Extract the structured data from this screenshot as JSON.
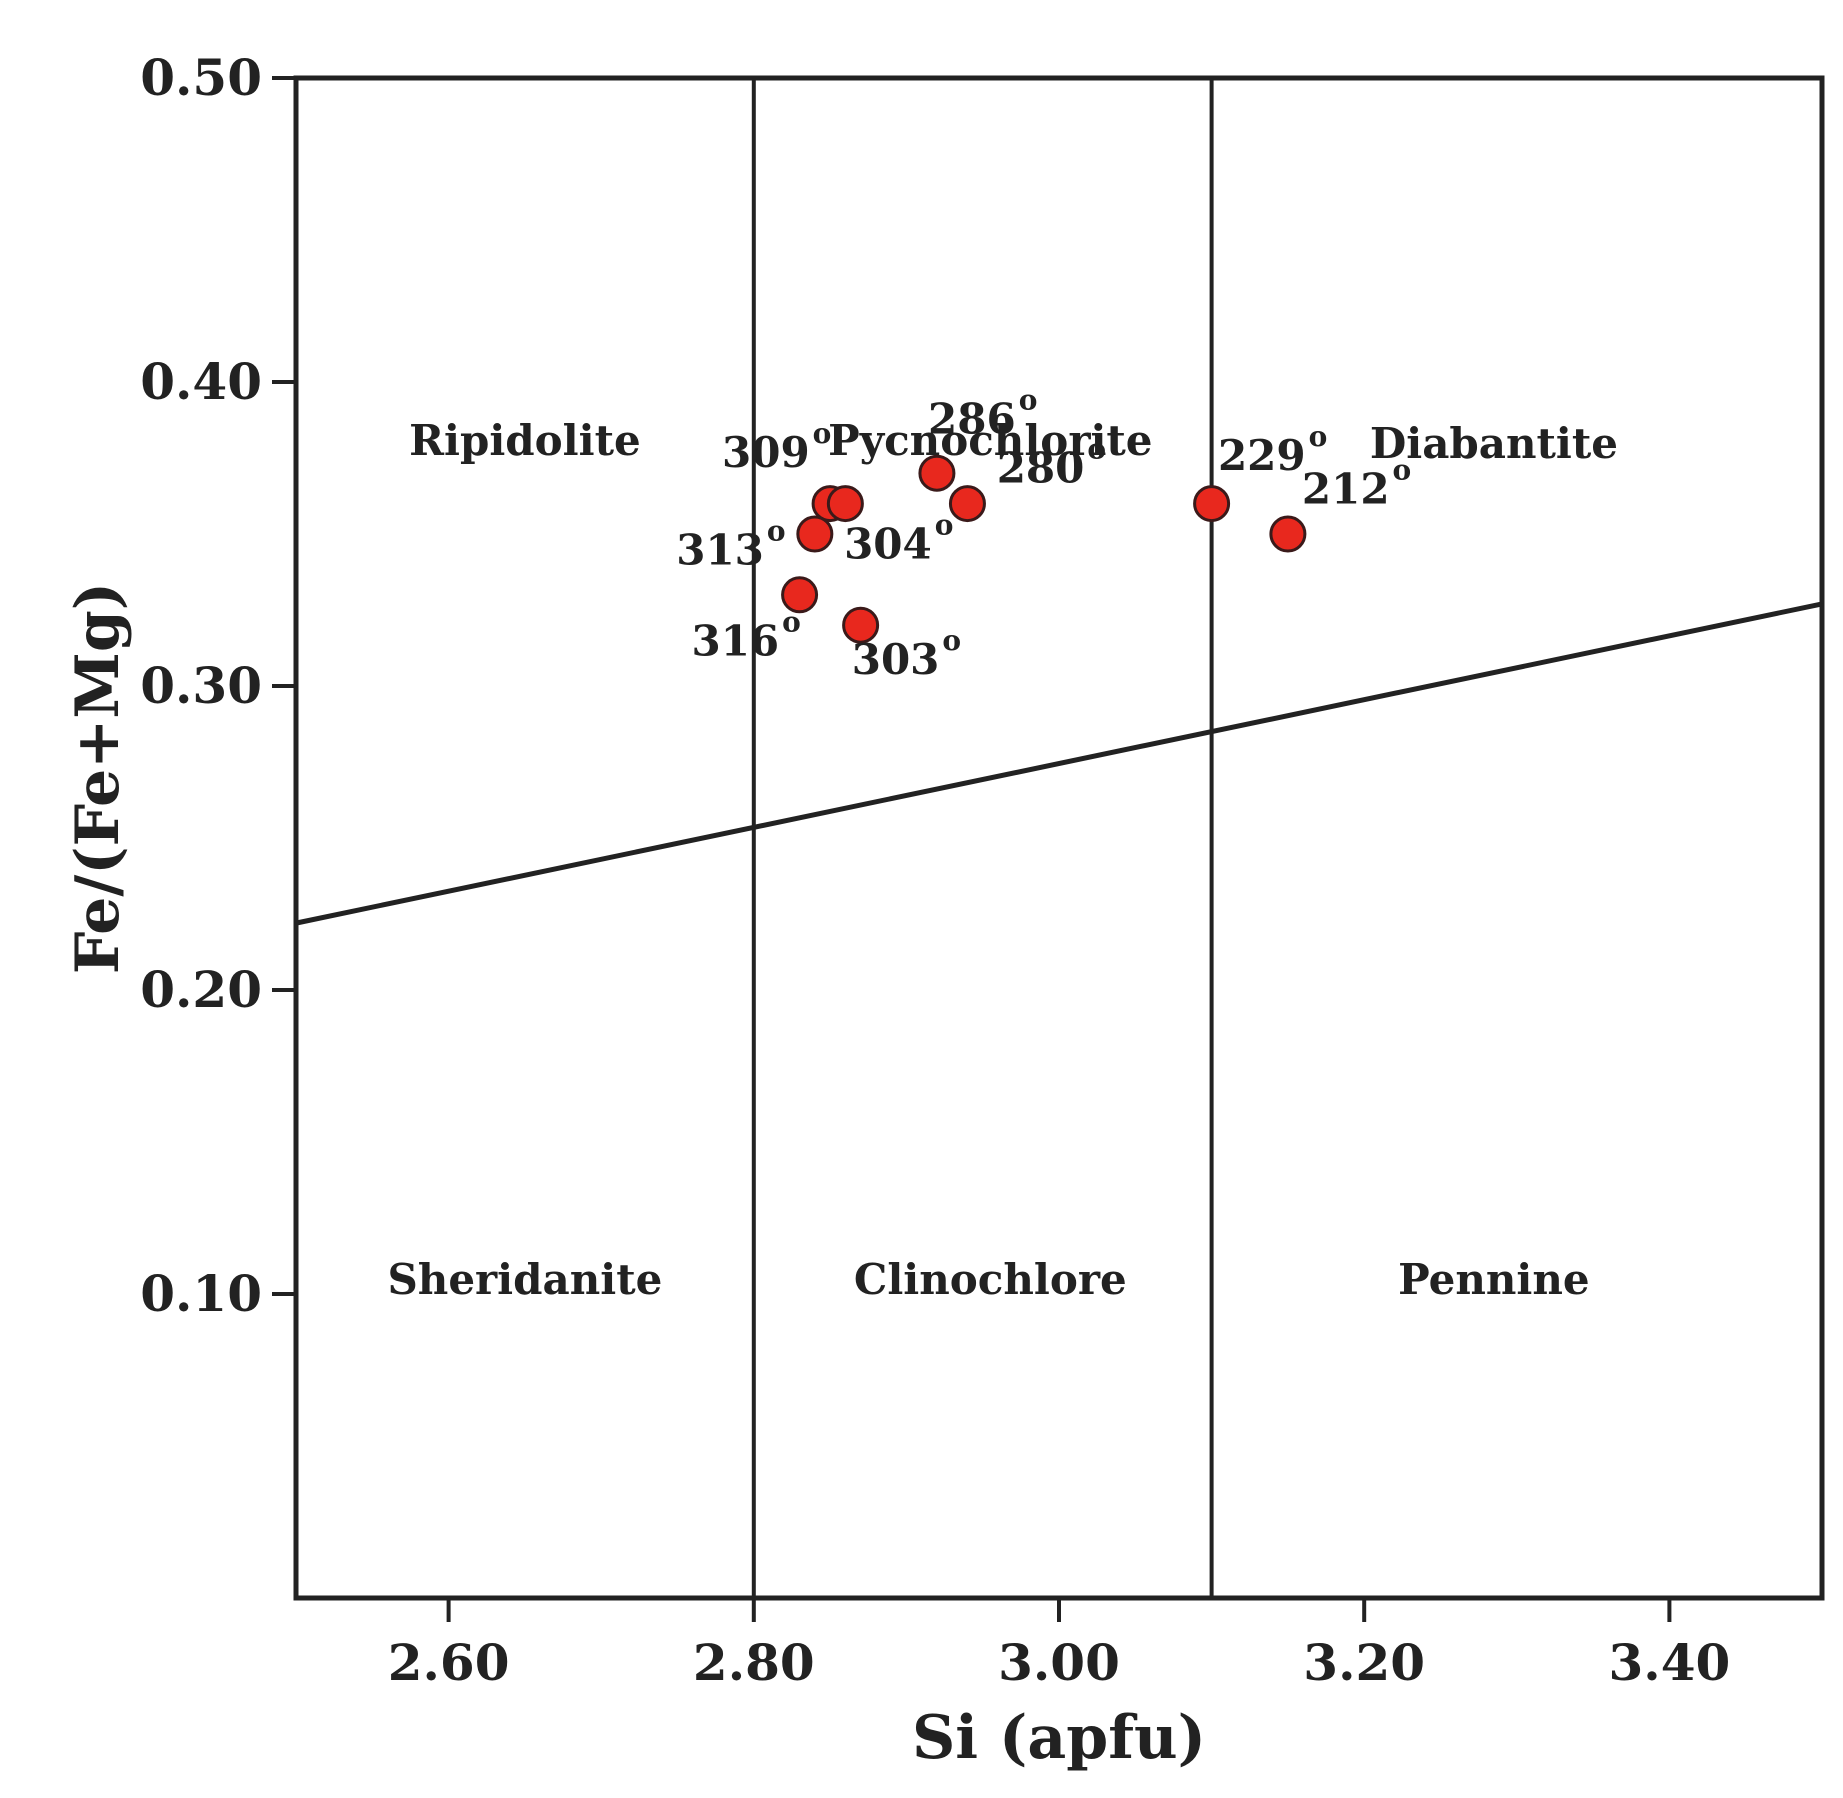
{
  "chart_data": {
    "type": "scatter",
    "xlabel": "Si (apfu)",
    "ylabel": "Fe/(Fe+Mg)",
    "xlim": [
      2.5,
      3.5
    ],
    "ylim": [
      0.0,
      0.5
    ],
    "x_ticks": [
      "2.60",
      "2.80",
      "3.00",
      "3.20",
      "3.40"
    ],
    "y_ticks": [
      "0.10",
      "0.20",
      "0.30",
      "0.40",
      "0.50"
    ],
    "grid": false,
    "legend": "none",
    "colors": {
      "marker_fill": "#e8281e",
      "marker_edge": "#3a1a1a",
      "line": "#222222"
    },
    "boundaries": {
      "vertical_si": [
        2.8,
        3.1
      ],
      "sloped_line": {
        "x": [
          2.5,
          3.5
        ],
        "y": [
          0.222,
          0.327
        ]
      }
    },
    "regions": [
      {
        "label": "Ripidolite",
        "x": 2.65,
        "y": 0.376
      },
      {
        "label": "Pycnochlorite",
        "x": 2.955,
        "y": 0.376
      },
      {
        "label": "Diabantite",
        "x": 3.285,
        "y": 0.375
      },
      {
        "label": "Sheridanite",
        "x": 2.65,
        "y": 0.1
      },
      {
        "label": "Clinochlore",
        "x": 2.955,
        "y": 0.1
      },
      {
        "label": "Pennine",
        "x": 3.285,
        "y": 0.1
      }
    ],
    "points": [
      {
        "x": 2.85,
        "y": 0.36,
        "label": "309",
        "sup": "o",
        "lx": 2.815,
        "ly": 0.372
      },
      {
        "x": 2.86,
        "y": 0.36,
        "label": "304",
        "sup": "o",
        "lx": 2.895,
        "ly": 0.342
      },
      {
        "x": 2.84,
        "y": 0.35,
        "label": "313",
        "sup": "o",
        "lx": 2.785,
        "ly": 0.34
      },
      {
        "x": 2.92,
        "y": 0.37,
        "label": "286",
        "sup": "o",
        "lx": 2.95,
        "ly": 0.383
      },
      {
        "x": 2.94,
        "y": 0.36,
        "label": "280",
        "sup": "o",
        "lx": 2.995,
        "ly": 0.367
      },
      {
        "x": 2.83,
        "y": 0.33,
        "label": "316",
        "sup": "o",
        "lx": 2.795,
        "ly": 0.31
      },
      {
        "x": 2.87,
        "y": 0.32,
        "label": "303",
        "sup": "o",
        "lx": 2.9,
        "ly": 0.304
      },
      {
        "x": 3.1,
        "y": 0.36,
        "label": "229",
        "sup": "o",
        "lx": 3.14,
        "ly": 0.371
      },
      {
        "x": 3.15,
        "y": 0.35,
        "label": "212",
        "sup": "o",
        "lx": 3.195,
        "ly": 0.36
      }
    ]
  }
}
